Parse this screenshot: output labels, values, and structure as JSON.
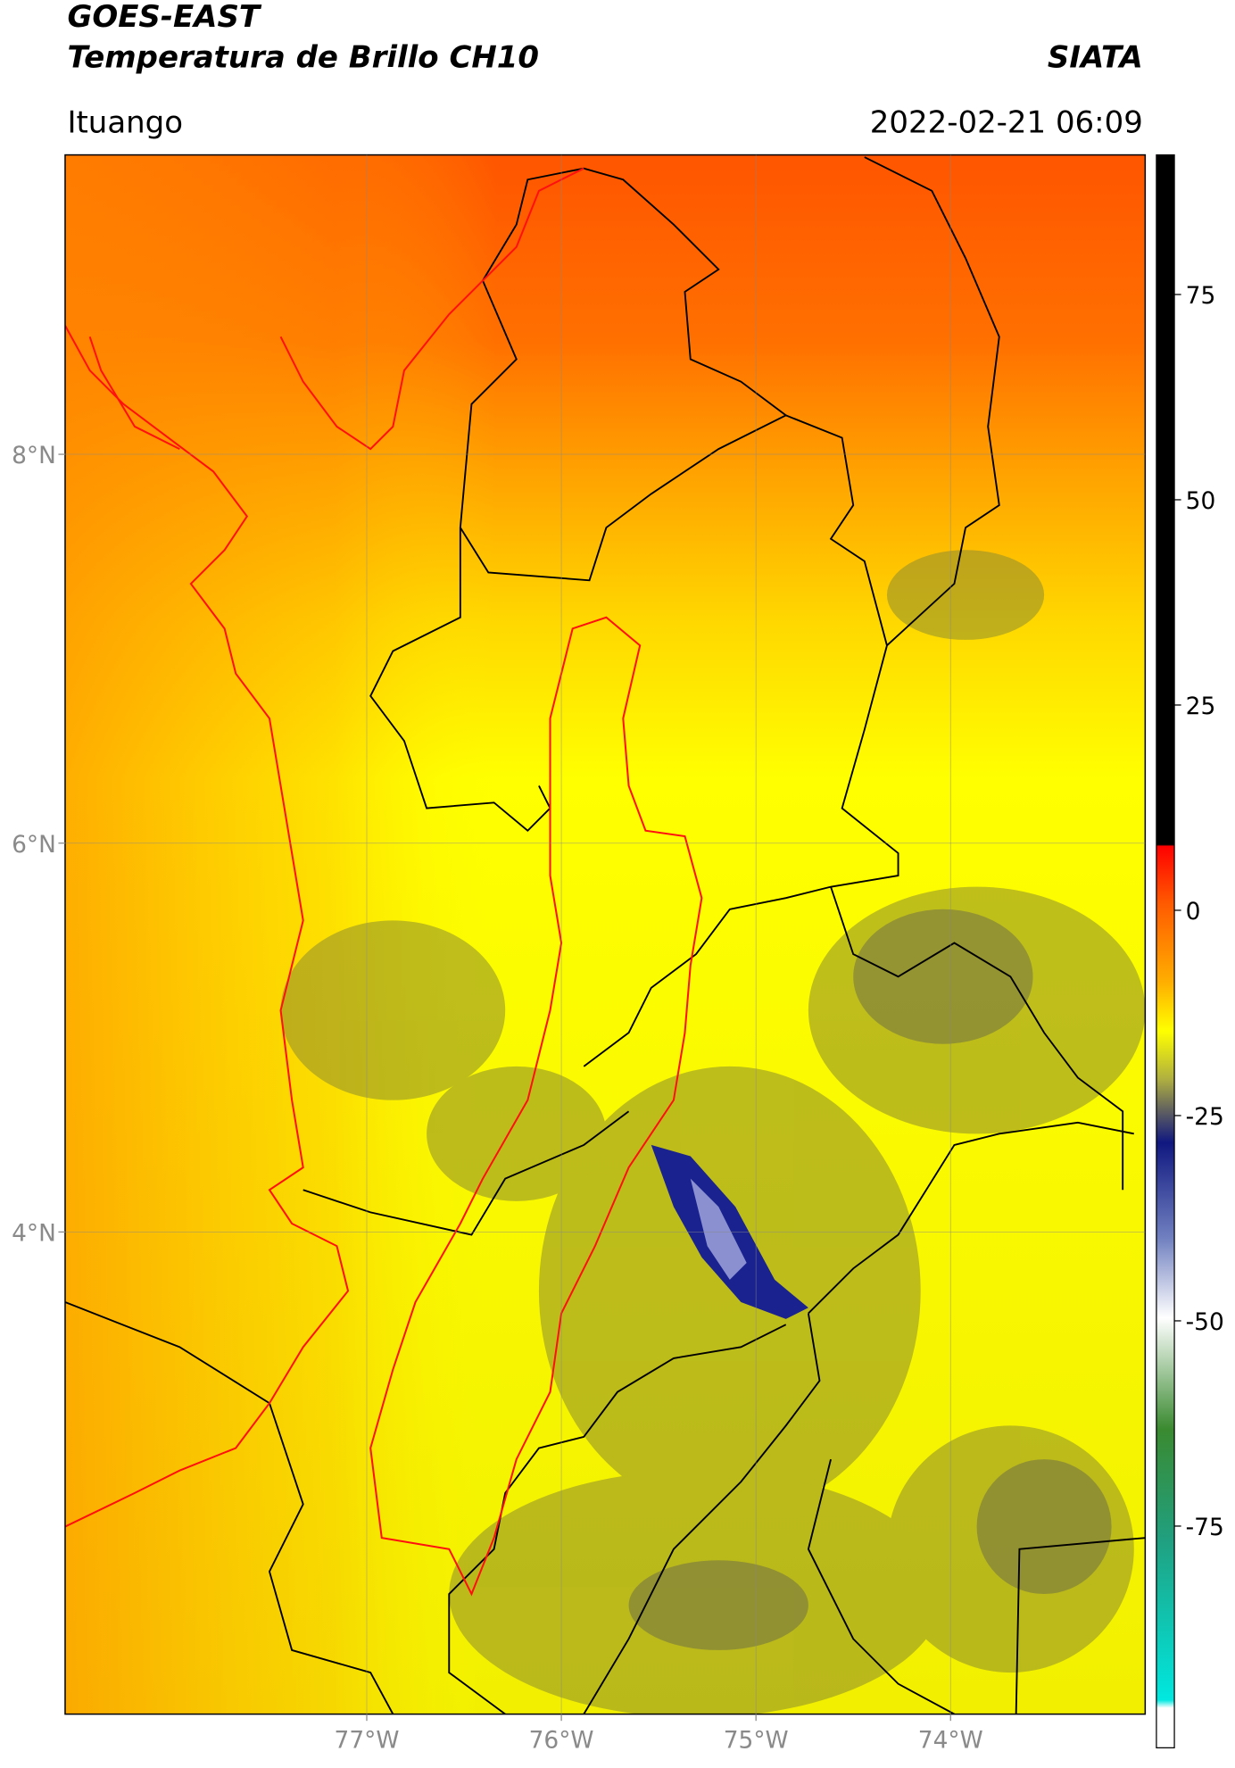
{
  "header": {
    "title": "GOES-EAST",
    "subtitle": "Temperatura de Brillo CH10",
    "source": "SIATA",
    "region": "Ituango",
    "datetime": "2022-02-21 06:09"
  },
  "map": {
    "xlim": [
      -78.55,
      -73.0
    ],
    "ylim": [
      1.52,
      9.54
    ],
    "xticks": [
      {
        "value": -77,
        "label": "77°W"
      },
      {
        "value": -76,
        "label": "76°W"
      },
      {
        "value": -75,
        "label": "75°W"
      },
      {
        "value": -74,
        "label": "74°W"
      }
    ],
    "yticks": [
      {
        "value": 8,
        "label": "8°N"
      },
      {
        "value": 6,
        "label": "6°N"
      },
      {
        "value": 4,
        "label": "4°N"
      }
    ],
    "grid": true
  },
  "colorbar": {
    "lim": [
      -102,
      92
    ],
    "ticks": [
      75,
      50,
      25,
      0,
      -25,
      -50,
      -75
    ]
  }
}
